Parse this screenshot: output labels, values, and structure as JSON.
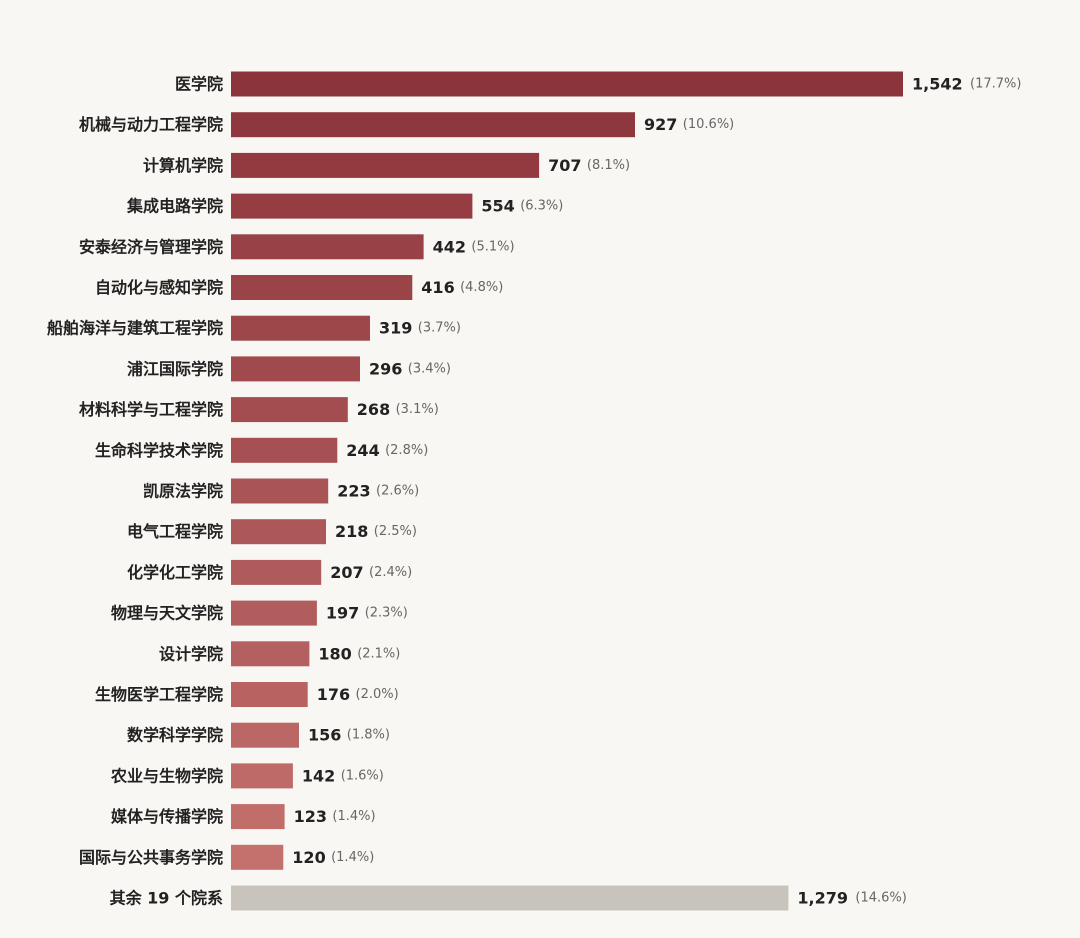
{
  "chart_data": {
    "type": "bar",
    "orientation": "horizontal",
    "title": "",
    "xlabel": "",
    "ylabel": "",
    "xlim": [
      0,
      1542
    ],
    "grid": false,
    "legend": "none",
    "categories": [
      "医学院",
      "机械与动力工程学院",
      "计算机学院",
      "集成电路学院",
      "安泰经济与管理学院",
      "自动化与感知学院",
      "船舶海洋与建筑工程学院",
      "浦江国际学院",
      "材料科学与工程学院",
      "生命科学技术学院",
      "凯原法学院",
      "电气工程学院",
      "化学化工学院",
      "物理与天文学院",
      "设计学院",
      "生物医学工程学院",
      "数学科学学院",
      "农业与生物学院",
      "媒体与传播学院",
      "国际与公共事务学院",
      "其余 19 个院系"
    ],
    "values": [
      1542,
      927,
      707,
      554,
      442,
      416,
      319,
      296,
      268,
      244,
      223,
      218,
      207,
      197,
      180,
      176,
      156,
      142,
      123,
      120,
      1279
    ],
    "value_labels": [
      "1,542",
      "927",
      "707",
      "554",
      "442",
      "416",
      "319",
      "296",
      "268",
      "244",
      "223",
      "218",
      "207",
      "197",
      "180",
      "176",
      "156",
      "142",
      "123",
      "120",
      "1,279"
    ],
    "percent_labels": [
      "(17.7%)",
      "(10.6%)",
      "(8.1%)",
      "(6.3%)",
      "(5.1%)",
      "(4.8%)",
      "(3.7%)",
      "(3.4%)",
      "(3.1%)",
      "(2.8%)",
      "(2.6%)",
      "(2.5%)",
      "(2.4%)",
      "(2.3%)",
      "(2.1%)",
      "(2.0%)",
      "(1.8%)",
      "(1.6%)",
      "(1.4%)",
      "(1.4%)",
      "(14.6%)"
    ],
    "colors": {
      "bar_start": "#8c343b",
      "bar_end": "#c4706d",
      "other_bar": "#c8c4bc",
      "category_text": "#222222",
      "value_text": "#222222",
      "percent_text": "#666666",
      "background": "#f9f7f3"
    }
  }
}
